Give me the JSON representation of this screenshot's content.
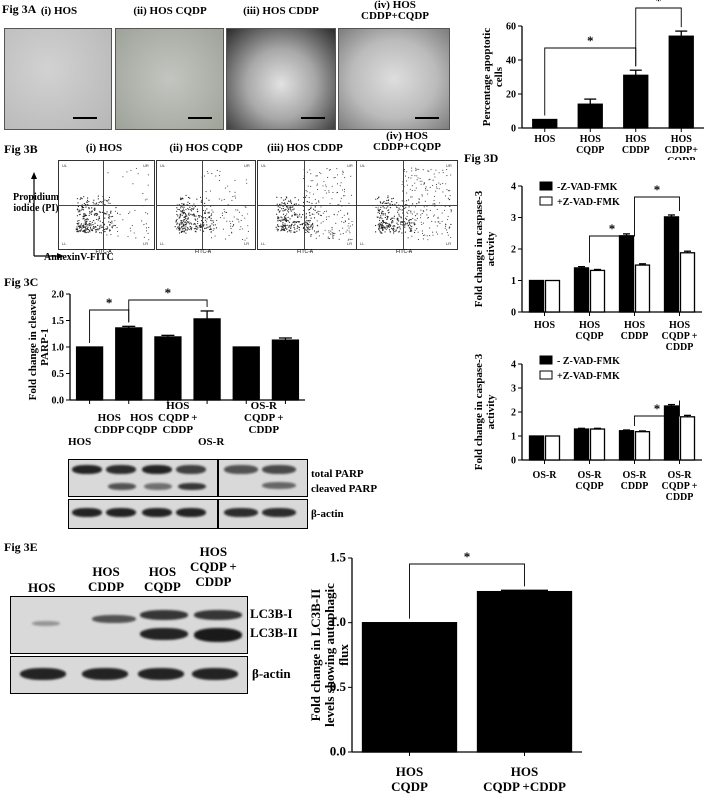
{
  "fig3a": {
    "label": "Fig 3A",
    "panels": [
      "(i) HOS",
      "(ii) HOS CQDP",
      "(iii) HOS CDDP",
      "(iv) HOS\nCDDP+CQDP"
    ],
    "chart_data": {
      "type": "bar",
      "categories": [
        "HOS",
        "HOS\nCQDP",
        "HOS\nCDDP",
        "HOS\nCDDP+\nCQDP"
      ],
      "values": [
        5,
        14,
        31,
        54
      ],
      "errors": [
        0,
        3,
        3,
        3
      ],
      "ylabel": "Percentage apoptotic\ncells",
      "ylim": [
        0,
        60
      ],
      "yticks": [
        0,
        20,
        40,
        60
      ],
      "significance": [
        {
          "from": 0,
          "to": 2,
          "label": "*"
        },
        {
          "from": 2,
          "to": 3,
          "label": "*"
        }
      ]
    }
  },
  "fig3b": {
    "label": "Fig 3B",
    "panels": [
      "(i) HOS",
      "(ii) HOS CQDP",
      "(iii) HOS CDDP",
      "(iv) HOS\nCDDP+CQDP"
    ],
    "ylabel": "Propidium\niodide (PI)",
    "xlabel": "AnnexinV-FITC",
    "quadrants": [
      "UL",
      "UR",
      "LL",
      "LR"
    ],
    "axis_label": "FITC-A"
  },
  "fig3c": {
    "label": "Fig 3C",
    "chart_data": {
      "type": "bar",
      "categories": [
        "HOS",
        "HOS\nCDDP",
        "HOS\nCQDP",
        "HOS\nCQDP +\nCDDP",
        "OS-R",
        "OS-R\nCQDP +\nCDDP"
      ],
      "values": [
        1.0,
        1.36,
        1.19,
        1.53,
        1.0,
        1.13
      ],
      "errors": [
        0,
        0.03,
        0.03,
        0.15,
        0,
        0.04
      ],
      "ylabel": "Fold change in cleaved\nPARP-1",
      "ylim": [
        0,
        2.0
      ],
      "yticks": [
        "0.0",
        "0.5",
        "1.0",
        "1.5",
        "2.0"
      ],
      "significance": [
        {
          "from": 0,
          "to": 1,
          "label": "*"
        },
        {
          "from": 1,
          "to": 3,
          "label": "*"
        }
      ]
    },
    "blot_lanes": [
      "HOS",
      "HOS\nCDDP",
      "HOS\nCQDP",
      "HOS\nCQDP +\nCDDP",
      "OS-R",
      "OS-R\nCQDP +\nCDDP"
    ],
    "blot_bands": [
      "total PARP",
      "cleaved PARP",
      "β-actin"
    ]
  },
  "fig3d": {
    "label": "Fig 3D",
    "legend": [
      "-Z-VAD-FMK",
      "+Z-VAD-FMK"
    ],
    "legend2": [
      "- Z-VAD-FMK",
      "+Z-VAD-FMK"
    ],
    "chart_data": [
      {
        "type": "bar",
        "categories": [
          "HOS",
          "HOS\nCQDP",
          "HOS\nCDDP",
          "HOS\nCQDP +\nCDDP"
        ],
        "series": [
          {
            "name": "-Z-VAD-FMK",
            "values": [
              1.0,
              1.4,
              2.42,
              3.02
            ],
            "errors": [
              0,
              0.04,
              0.06,
              0.06
            ]
          },
          {
            "name": "+Z-VAD-FMK",
            "values": [
              1.0,
              1.32,
              1.49,
              1.88
            ],
            "errors": [
              0,
              0.03,
              0.04,
              0.05
            ]
          }
        ],
        "ylabel": "Fold change in caspase-3\nactivity",
        "ylim": [
          0,
          4
        ],
        "yticks": [
          0,
          1,
          2,
          3,
          4
        ],
        "significance": [
          {
            "from": 1,
            "to": 2,
            "label": "*"
          },
          {
            "from": 2,
            "to": 3,
            "label": "*"
          }
        ]
      },
      {
        "type": "bar",
        "categories": [
          "OS-R",
          "OS-R\nCQDP",
          "OS-R\nCDDP",
          "OS-R\nCQDP +\nCDDP"
        ],
        "series": [
          {
            "name": "- Z-VAD-FMK",
            "values": [
              1.0,
              1.29,
              1.22,
              2.25
            ],
            "errors": [
              0,
              0.03,
              0.03,
              0.06
            ]
          },
          {
            "name": "+Z-VAD-FMK",
            "values": [
              1.0,
              1.29,
              1.18,
              1.8
            ],
            "errors": [
              0,
              0.03,
              0.03,
              0.06
            ]
          }
        ],
        "ylabel": "Fold change in caspase-3\nactivity",
        "ylim": [
          0,
          4
        ],
        "yticks": [
          0,
          1,
          2,
          3,
          4
        ],
        "significance": [
          {
            "from": 2,
            "to": 3,
            "label": "*"
          }
        ]
      }
    ]
  },
  "fig3e": {
    "label": "Fig 3E",
    "blot_lanes": [
      "HOS",
      "HOS\nCDDP",
      "HOS\nCQDP",
      "HOS\nCQDP +\nCDDP"
    ],
    "blot_bands": [
      "LC3B-I",
      "LC3B-II",
      "β-actin"
    ],
    "chart_data": {
      "type": "bar",
      "categories": [
        "HOS\nCQDP",
        "HOS\nCQDP +CDDP"
      ],
      "values": [
        1.0,
        1.24
      ],
      "errors": [
        0,
        0.01
      ],
      "ylabel": "Fold change in LC3B-II\nlevels showing autophagic\nflux",
      "ylim": [
        0,
        1.5
      ],
      "yticks": [
        "0.0",
        "0.5",
        "1.0",
        "1.5"
      ],
      "significance": [
        {
          "from": 0,
          "to": 1,
          "label": "*"
        }
      ]
    }
  }
}
